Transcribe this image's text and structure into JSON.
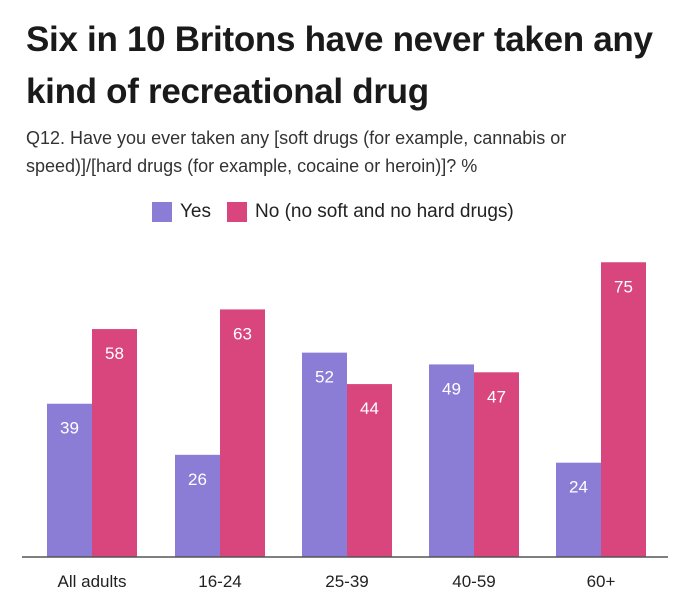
{
  "title": "Six in 10 Britons have never taken any kind of recreational drug",
  "subtitle": "Q12. Have you ever taken any [soft drugs (for example, cannabis or speed)]/[hard drugs (for example, cocaine or heroin)]? %",
  "legend": [
    {
      "label": "Yes",
      "color": "#8b7dd6"
    },
    {
      "label": "No (no soft and no hard drugs)",
      "color": "#d9467e"
    }
  ],
  "chart_data": {
    "type": "bar",
    "title": "Six in 10 Britons have never taken any kind of recreational drug",
    "categories": [
      "All adults",
      "16-24",
      "25-39",
      "40-59",
      "60+"
    ],
    "series": [
      {
        "name": "Yes",
        "color": "#8b7dd6",
        "values": [
          39,
          26,
          52,
          49,
          24
        ]
      },
      {
        "name": "No (no soft and no hard drugs)",
        "color": "#d9467e",
        "values": [
          58,
          63,
          44,
          47,
          75
        ]
      }
    ],
    "ylim": [
      0,
      75
    ],
    "grid": false,
    "legend_position": "top"
  }
}
